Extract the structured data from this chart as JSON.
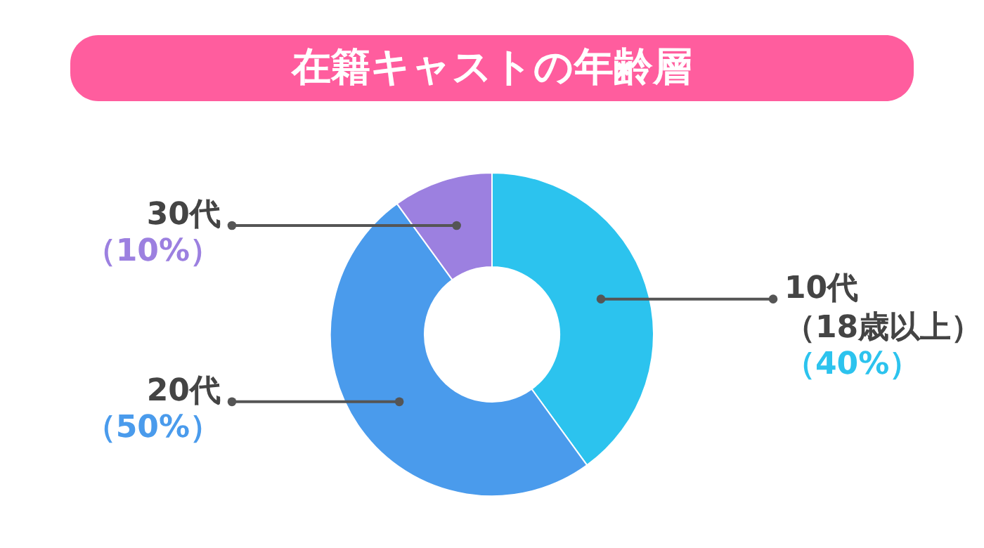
{
  "chart_data": {
    "type": "donut",
    "title": "在籍キャストの年齢層",
    "categories": [
      "10代（18歳以上）",
      "20代",
      "30代"
    ],
    "values": [
      40,
      50,
      10
    ],
    "colors": [
      "#2cc3ee",
      "#4a9bec",
      "#9c80e0"
    ],
    "value_labels": [
      "（40%）",
      "（50%）",
      "（10%）"
    ]
  }
}
